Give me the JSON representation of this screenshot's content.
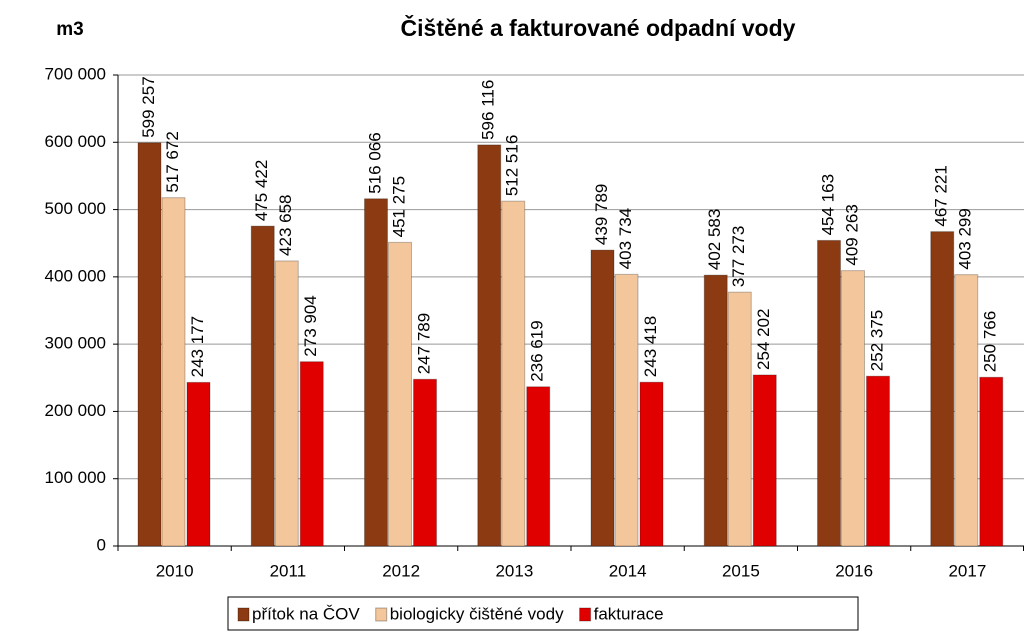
{
  "chart_data": {
    "type": "bar",
    "title": "Čištěné a fakturované odpadní vody",
    "ylabel": "m3",
    "categories": [
      "2010",
      "2011",
      "2012",
      "2013",
      "2014",
      "2015",
      "2016",
      "2017"
    ],
    "series": [
      {
        "name": "přítok na ČOV",
        "color": "#8b3a12",
        "values": [
          599257,
          475422,
          516066,
          596116,
          439789,
          402583,
          454163,
          467221
        ],
        "value_labels": [
          "599 257",
          "475 422",
          "516 066",
          "596 116",
          "439 789",
          "402 583",
          "454 163",
          "467 221"
        ]
      },
      {
        "name": "biologicky čištěné vody",
        "color": "#f3c69c",
        "values": [
          517672,
          423658,
          451275,
          512516,
          403734,
          377273,
          409263,
          403299
        ],
        "value_labels": [
          "517 672",
          "423 658",
          "451 275",
          "512 516",
          "403 734",
          "377 273",
          "409 263",
          "403 299"
        ]
      },
      {
        "name": "fakturace",
        "color": "#e00000",
        "values": [
          243177,
          273904,
          247789,
          236619,
          243418,
          254202,
          252375,
          250766
        ],
        "value_labels": [
          "243 177",
          "273 904",
          "247 789",
          "236 619",
          "243 418",
          "254 202",
          "252 375",
          "250 766"
        ]
      }
    ],
    "ylim": [
      0,
      700000
    ],
    "yticks": [
      0,
      {
        "value": 100000,
        "label": "100 000"
      },
      {
        "value": 200000,
        "label": "200 000"
      },
      {
        "value": 300000,
        "label": "300 000"
      },
      {
        "value": 400000,
        "label": "400 000"
      },
      {
        "value": 500000,
        "label": "500 000"
      },
      {
        "value": 600000,
        "label": "600 000"
      },
      {
        "value": 700000,
        "label": "700 000"
      }
    ],
    "grid": true,
    "legend": "bottom"
  }
}
